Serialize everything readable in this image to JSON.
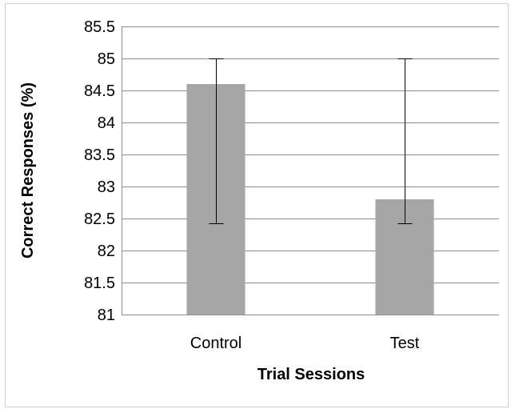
{
  "chart_data": {
    "type": "bar",
    "title": "",
    "xlabel": "Trial Sessions",
    "ylabel": "Correct Responses (%)",
    "categories": [
      "Control",
      "Test"
    ],
    "values": [
      84.6,
      82.8
    ],
    "error_bars": [
      {
        "low": 82.42,
        "high": 85.0
      },
      {
        "low": 82.42,
        "high": 85.0
      }
    ],
    "ylim": [
      81,
      85.5
    ],
    "yticks": [
      "81",
      "81.5",
      "82",
      "82.5",
      "83",
      "83.5",
      "84",
      "84.5",
      "85",
      "85.5"
    ],
    "grid": true,
    "legend": "none",
    "colors": {
      "bar": "#a6a6a6",
      "grid": "#8c8c8c",
      "axis": "#8c8c8c",
      "error_bar": "#000000"
    }
  }
}
